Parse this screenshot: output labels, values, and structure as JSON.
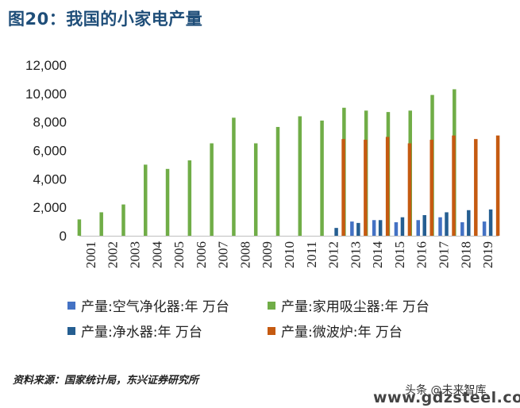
{
  "title": "图20：我国的小家电产量",
  "source": "资料来源：国家统计局，东兴证券研究所",
  "watermark": {
    "line1": "头条 @未来智库",
    "line2": "www.gdzsteel.com"
  },
  "colors": {
    "air_purifier": "#4472c4",
    "vacuum": "#70ad47",
    "water_purifier": "#255e91",
    "microwave": "#c55a11",
    "title": "#1f4e79"
  },
  "legend": [
    {
      "key": "air_purifier",
      "label": "产量:空气净化器:年 万台"
    },
    {
      "key": "vacuum",
      "label": "产量:家用吸尘器:年 万台"
    },
    {
      "key": "water_purifier",
      "label": "产量:净水器:年 万台"
    },
    {
      "key": "microwave",
      "label": "产量:微波炉:年 万台"
    }
  ],
  "chart_data": {
    "type": "bar",
    "categories": [
      "2001",
      "2002",
      "2003",
      "2004",
      "2005",
      "2006",
      "2007",
      "2008",
      "2009",
      "2010",
      "2011",
      "2012",
      "2013",
      "2014",
      "2015",
      "2016",
      "2017",
      "2018",
      "2019"
    ],
    "ylim": [
      0,
      12000
    ],
    "yticks": [
      0,
      2000,
      4000,
      6000,
      8000,
      10000,
      12000
    ],
    "ytick_labels": [
      "0",
      "2,000",
      "4,000",
      "6,000",
      "8,000",
      "10,000",
      "12,000"
    ],
    "series": [
      {
        "name": "产量:空气净化器:年 万台",
        "key": "air_purifier",
        "values": [
          null,
          null,
          null,
          null,
          null,
          null,
          null,
          null,
          null,
          null,
          null,
          null,
          1000,
          1100,
          950,
          1100,
          1300,
          950,
          1000
        ]
      },
      {
        "name": "产量:家用吸尘器:年 万台",
        "key": "vacuum",
        "values": [
          1150,
          1650,
          2200,
          5000,
          4700,
          5300,
          6500,
          8300,
          6500,
          7650,
          8400,
          8100,
          9000,
          8800,
          8700,
          8800,
          9900,
          10300,
          null
        ]
      },
      {
        "name": "产量:净水器:年 万台",
        "key": "water_purifier",
        "values": [
          null,
          null,
          null,
          null,
          null,
          null,
          null,
          null,
          null,
          null,
          null,
          550,
          900,
          1100,
          1300,
          1450,
          1650,
          1800,
          1850
        ]
      },
      {
        "name": "产量:微波炉:年 万台",
        "key": "microwave",
        "values": [
          null,
          null,
          null,
          null,
          null,
          null,
          null,
          null,
          null,
          null,
          null,
          6800,
          6750,
          6950,
          6500,
          6750,
          7050,
          6800,
          7050
        ]
      }
    ]
  }
}
